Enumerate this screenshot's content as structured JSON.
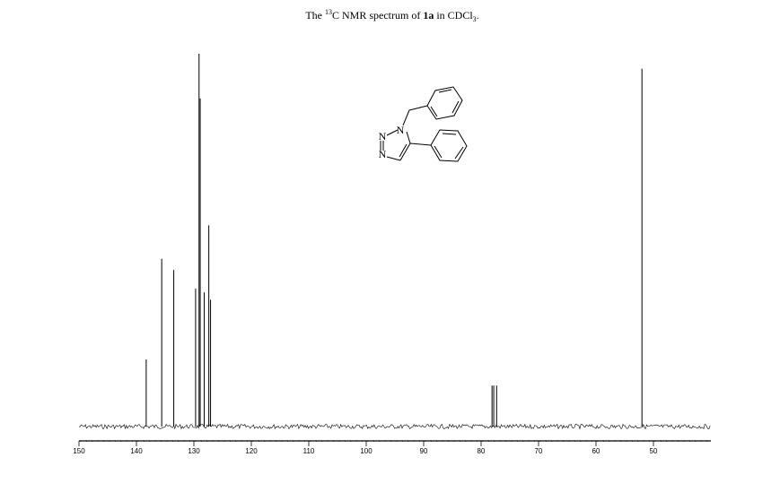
{
  "chart_data": {
    "type": "nmr",
    "title": [
      "The ",
      "13",
      "C NMR spectrum of ",
      "1a",
      " in CDCl",
      "3",
      "."
    ],
    "structure_labels": [
      "N",
      "N",
      "N"
    ],
    "x": [
      138.3,
      135.6,
      133.5,
      129.7,
      129.1,
      128.9,
      128.2,
      127.4,
      127.1,
      78.1,
      77.8,
      77.3,
      52.0
    ],
    "values": [
      18,
      45,
      42,
      37,
      100,
      88,
      36,
      54,
      34,
      11,
      11,
      11,
      96
    ],
    "color": "#000000",
    "xlim": [
      150,
      40
    ],
    "ylim": [
      0,
      100
    ],
    "xticks": [
      150,
      140,
      130,
      120,
      110,
      100,
      90,
      80,
      70,
      60,
      50
    ]
  }
}
